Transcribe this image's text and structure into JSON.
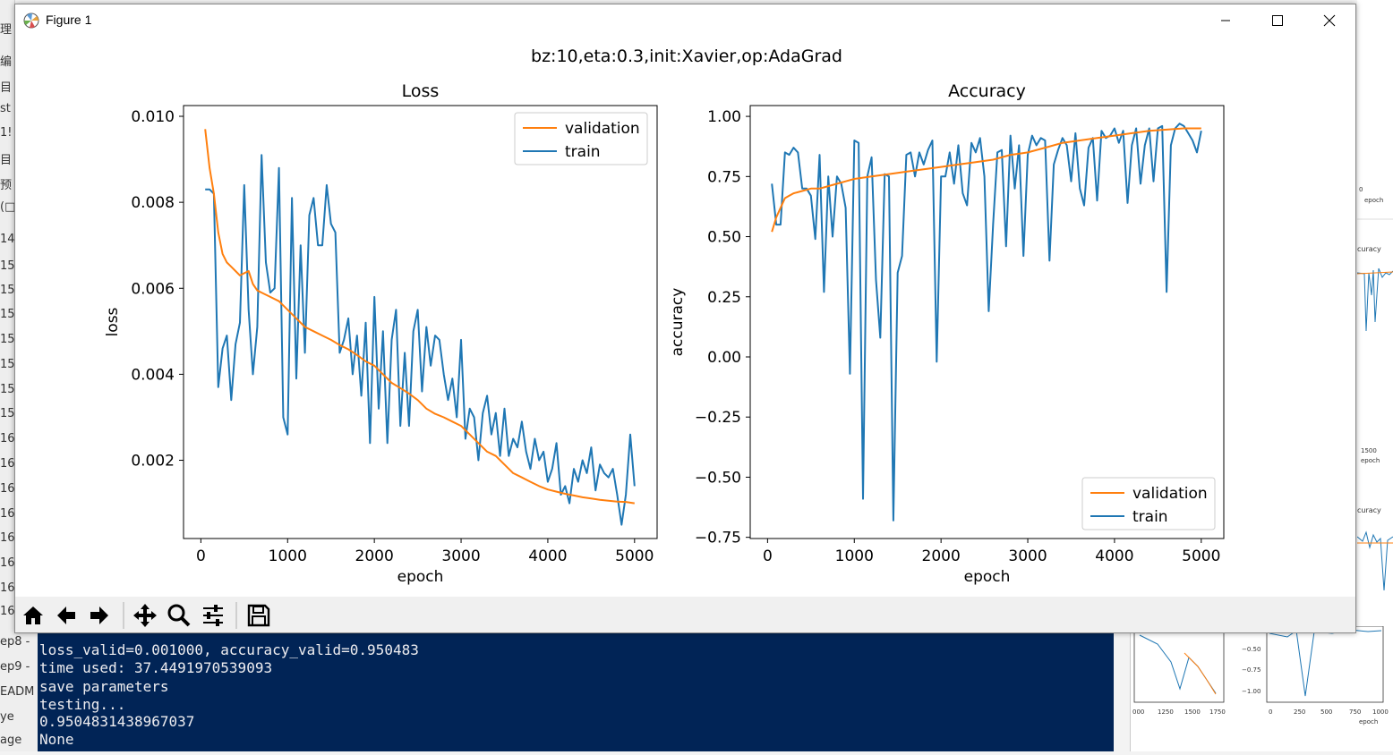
{
  "window": {
    "title": "Figure 1",
    "suptitle": "bz:10,eta:0.3,init:Xavier,op:AdaGrad"
  },
  "toolbar": {
    "buttons": [
      "home-icon",
      "back-icon",
      "forward-icon",
      "pan-icon",
      "zoom-icon",
      "configure-icon",
      "save-icon"
    ]
  },
  "background": {
    "left_items": [
      "理",
      "编",
      "目",
      "st",
      "1!",
      "目",
      "预",
      "(□",
      "14",
      "15",
      "15",
      "15",
      "15",
      "15",
      "15",
      "15",
      "16",
      "16",
      "16",
      "16",
      "16",
      "16",
      "16",
      "16"
    ],
    "terminal_side": [
      "ep8 -",
      "ep9 -",
      "EADM",
      "ye",
      "age"
    ],
    "terminal_lines": [
      "loss_valid=0.001000, accuracy_valid=0.950483",
      "time used: 37.4491970539093",
      "save parameters",
      "testing...",
      "0.9504831438967037",
      "None"
    ]
  },
  "colors": {
    "validation": "#ff7f0e",
    "train": "#1f77b4",
    "terminal": "#012456"
  },
  "chart_data": [
    {
      "type": "line",
      "title": "Loss",
      "xlabel": "epoch",
      "ylabel": "loss",
      "xlim": [
        -200,
        5260
      ],
      "ylim": [
        0.00018,
        0.01025
      ],
      "xticks": [
        0,
        1000,
        2000,
        3000,
        4000,
        5000
      ],
      "xtick_labels": [
        "0",
        "1000",
        "2000",
        "3000",
        "4000",
        "5000"
      ],
      "yticks": [
        0.002,
        0.004,
        0.006,
        0.008,
        0.01
      ],
      "ytick_labels": [
        "0.002",
        "0.004",
        "0.006",
        "0.008",
        "0.010"
      ],
      "legend": "top-right",
      "series": [
        {
          "name": "validation",
          "x": [
            50,
            100,
            150,
            200,
            250,
            300,
            350,
            400,
            450,
            500,
            550,
            600,
            650,
            700,
            800,
            900,
            1000,
            1100,
            1200,
            1300,
            1400,
            1500,
            1600,
            1700,
            1800,
            1900,
            2000,
            2100,
            2200,
            2300,
            2400,
            2500,
            2600,
            2700,
            2800,
            2900,
            3000,
            3100,
            3200,
            3300,
            3400,
            3500,
            3600,
            3700,
            3800,
            3900,
            4000,
            4100,
            4200,
            4300,
            4400,
            4500,
            4600,
            4700,
            4800,
            4900,
            5000
          ],
          "values": [
            0.0097,
            0.0088,
            0.0082,
            0.0073,
            0.0068,
            0.0066,
            0.0065,
            0.0064,
            0.0063,
            0.00635,
            0.0064,
            0.0061,
            0.00595,
            0.0059,
            0.0058,
            0.0057,
            0.0055,
            0.0053,
            0.0051,
            0.005,
            0.0049,
            0.0048,
            0.00468,
            0.00458,
            0.00445,
            0.0043,
            0.0042,
            0.004,
            0.0038,
            0.00368,
            0.00355,
            0.0034,
            0.0032,
            0.00308,
            0.003,
            0.0029,
            0.0028,
            0.0026,
            0.0024,
            0.0022,
            0.0021,
            0.0019,
            0.0017,
            0.0016,
            0.0015,
            0.0014,
            0.00132,
            0.00127,
            0.00122,
            0.00118,
            0.00114,
            0.00111,
            0.00108,
            0.00106,
            0.00104,
            0.00103,
            0.001
          ]
        },
        {
          "name": "train",
          "x": [
            50,
            100,
            150,
            200,
            250,
            300,
            350,
            400,
            450,
            500,
            550,
            600,
            650,
            700,
            750,
            800,
            850,
            900,
            950,
            1000,
            1050,
            1100,
            1150,
            1200,
            1250,
            1300,
            1350,
            1400,
            1450,
            1500,
            1550,
            1600,
            1650,
            1700,
            1750,
            1800,
            1850,
            1900,
            1950,
            2000,
            2050,
            2100,
            2150,
            2200,
            2250,
            2300,
            2350,
            2400,
            2450,
            2500,
            2550,
            2600,
            2650,
            2700,
            2750,
            2800,
            2850,
            2900,
            2950,
            3000,
            3050,
            3100,
            3150,
            3200,
            3250,
            3300,
            3350,
            3400,
            3450,
            3500,
            3550,
            3600,
            3650,
            3700,
            3750,
            3800,
            3850,
            3900,
            3950,
            4000,
            4050,
            4100,
            4150,
            4200,
            4250,
            4300,
            4350,
            4400,
            4450,
            4500,
            4550,
            4600,
            4650,
            4700,
            4750,
            4800,
            4850,
            4900,
            4950,
            5000
          ],
          "values": [
            0.0083,
            0.0083,
            0.0082,
            0.0037,
            0.0046,
            0.0049,
            0.0034,
            0.0047,
            0.0052,
            0.0084,
            0.0055,
            0.004,
            0.0051,
            0.0091,
            0.0066,
            0.0059,
            0.006,
            0.0088,
            0.003,
            0.0026,
            0.0081,
            0.0039,
            0.007,
            0.0045,
            0.0077,
            0.0081,
            0.007,
            0.007,
            0.0084,
            0.0075,
            0.0073,
            0.0045,
            0.0048,
            0.0053,
            0.004,
            0.0049,
            0.0035,
            0.0052,
            0.0024,
            0.0058,
            0.0032,
            0.005,
            0.0024,
            0.0048,
            0.0055,
            0.0028,
            0.0045,
            0.0028,
            0.005,
            0.0055,
            0.0036,
            0.0051,
            0.0042,
            0.0049,
            0.0048,
            0.004,
            0.0034,
            0.0039,
            0.003,
            0.0048,
            0.0025,
            0.0032,
            0.003,
            0.002,
            0.0031,
            0.0035,
            0.0026,
            0.0031,
            0.0021,
            0.0032,
            0.0021,
            0.0025,
            0.0023,
            0.0029,
            0.0022,
            0.0018,
            0.0025,
            0.002,
            0.0022,
            0.0015,
            0.0018,
            0.0024,
            0.0012,
            0.0014,
            0.001,
            0.0018,
            0.0015,
            0.002,
            0.0017,
            0.0023,
            0.0013,
            0.0019,
            0.0017,
            0.0016,
            0.0018,
            0.0012,
            0.0005,
            0.0012,
            0.0026,
            0.0014
          ]
        }
      ]
    },
    {
      "type": "line",
      "title": "Accuracy",
      "xlabel": "epoch",
      "ylabel": "accuracy",
      "xlim": [
        -200,
        5260
      ],
      "ylim": [
        -0.755,
        1.045
      ],
      "xticks": [
        0,
        1000,
        2000,
        3000,
        4000,
        5000
      ],
      "xtick_labels": [
        "0",
        "1000",
        "2000",
        "3000",
        "4000",
        "5000"
      ],
      "yticks": [
        -0.75,
        -0.5,
        -0.25,
        0.0,
        0.25,
        0.5,
        0.75,
        1.0
      ],
      "ytick_labels": [
        "−0.75",
        "−0.50",
        "−0.25",
        "0.00",
        "0.25",
        "0.50",
        "0.75",
        "1.00"
      ],
      "legend": "bottom-right",
      "series": [
        {
          "name": "validation",
          "x": [
            50,
            100,
            150,
            200,
            250,
            300,
            400,
            500,
            600,
            700,
            800,
            900,
            1000,
            1200,
            1400,
            1600,
            1800,
            2000,
            2200,
            2400,
            2600,
            2800,
            3000,
            3200,
            3400,
            3600,
            3800,
            4000,
            4200,
            4400,
            4600,
            4800,
            5000
          ],
          "values": [
            0.52,
            0.58,
            0.62,
            0.66,
            0.67,
            0.68,
            0.69,
            0.7,
            0.7,
            0.71,
            0.72,
            0.73,
            0.74,
            0.75,
            0.76,
            0.77,
            0.78,
            0.79,
            0.8,
            0.81,
            0.82,
            0.84,
            0.85,
            0.87,
            0.89,
            0.9,
            0.91,
            0.92,
            0.93,
            0.94,
            0.945,
            0.95,
            0.95
          ]
        },
        {
          "name": "train",
          "x": [
            50,
            100,
            150,
            200,
            250,
            300,
            350,
            400,
            450,
            500,
            550,
            600,
            650,
            700,
            750,
            800,
            850,
            900,
            950,
            1000,
            1050,
            1100,
            1150,
            1200,
            1250,
            1300,
            1350,
            1400,
            1450,
            1500,
            1550,
            1600,
            1650,
            1700,
            1750,
            1800,
            1850,
            1900,
            1950,
            2000,
            2050,
            2100,
            2150,
            2200,
            2250,
            2300,
            2350,
            2400,
            2450,
            2500,
            2550,
            2600,
            2650,
            2700,
            2750,
            2800,
            2850,
            2900,
            2950,
            3000,
            3050,
            3100,
            3150,
            3200,
            3250,
            3300,
            3350,
            3400,
            3450,
            3500,
            3550,
            3600,
            3650,
            3700,
            3750,
            3800,
            3850,
            3900,
            3950,
            4000,
            4050,
            4100,
            4150,
            4200,
            4250,
            4300,
            4350,
            4400,
            4450,
            4500,
            4550,
            4600,
            4650,
            4700,
            4750,
            4800,
            4850,
            4900,
            4950,
            5000
          ],
          "values": [
            0.72,
            0.55,
            0.55,
            0.85,
            0.84,
            0.87,
            0.85,
            0.7,
            0.7,
            0.67,
            0.49,
            0.84,
            0.27,
            0.75,
            0.5,
            0.75,
            0.72,
            0.62,
            -0.07,
            0.9,
            0.89,
            -0.59,
            0.75,
            0.83,
            0.32,
            0.08,
            0.76,
            0.75,
            -0.68,
            0.35,
            0.42,
            0.84,
            0.85,
            0.75,
            0.85,
            0.8,
            0.86,
            0.9,
            -0.02,
            0.75,
            0.75,
            0.85,
            0.72,
            0.88,
            0.68,
            0.63,
            0.89,
            0.85,
            0.91,
            0.75,
            0.19,
            0.55,
            0.85,
            0.86,
            0.46,
            0.92,
            0.7,
            0.88,
            0.42,
            0.84,
            0.92,
            0.88,
            0.91,
            0.9,
            0.4,
            0.8,
            0.86,
            0.91,
            0.88,
            0.73,
            0.93,
            0.7,
            0.63,
            0.87,
            0.91,
            0.65,
            0.94,
            0.91,
            0.92,
            0.95,
            0.89,
            0.94,
            0.64,
            0.88,
            0.95,
            0.72,
            0.88,
            0.95,
            0.73,
            0.95,
            0.96,
            0.27,
            0.88,
            0.95,
            0.97,
            0.96,
            0.93,
            0.9,
            0.85,
            0.94
          ]
        }
      ]
    }
  ]
}
